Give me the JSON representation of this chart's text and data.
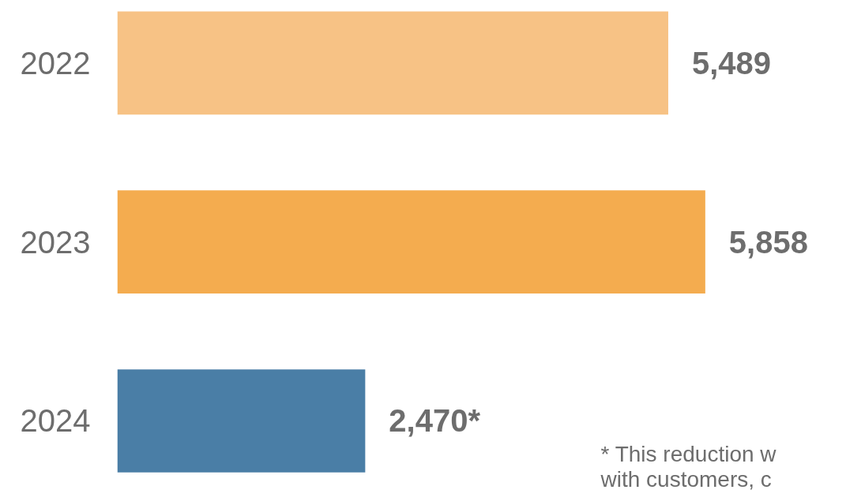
{
  "chart_data": {
    "type": "bar",
    "orientation": "horizontal",
    "categories": [
      "2022",
      "2023",
      "2024"
    ],
    "values": [
      5489,
      5858,
      2470
    ],
    "colors": [
      "#f7c285",
      "#f4ac4f",
      "#4a7ea6"
    ],
    "value_labels": [
      "5,489",
      "5,858",
      "2,470*"
    ],
    "tick_labels": "y",
    "grid": false,
    "annotations": [
      "* This reduction w\nwith customers, c"
    ]
  }
}
